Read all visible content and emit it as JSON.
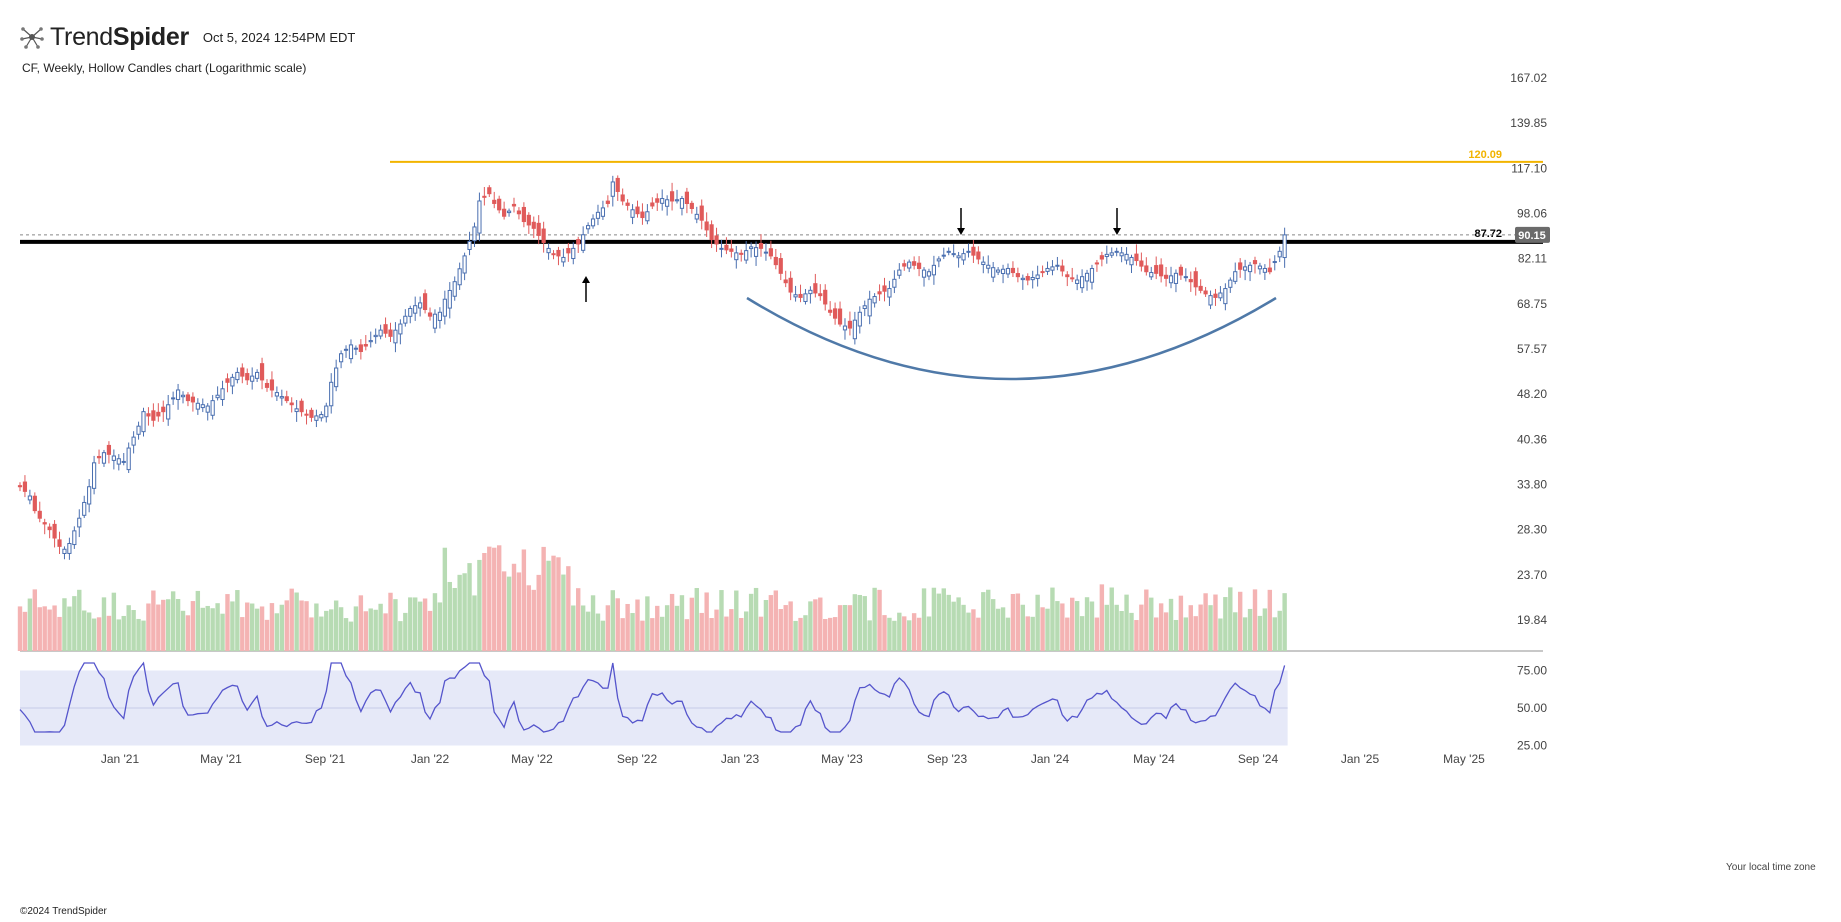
{
  "header": {
    "brand_light": "Trend",
    "brand_bold": "Spider",
    "timestamp": "Oct 5, 2024 12:54PM EDT"
  },
  "subtitle": "CF, Weekly, Hollow Candles chart (Logarithmic scale)",
  "copyright": "©2024 TrendSpider",
  "tz_note": "Your local time zone",
  "colors": {
    "up": "#4a6fb0",
    "down": "#e05a5a",
    "vol_up": "#b7dbb3",
    "vol_down": "#f4b3b3",
    "rsi_line": "#5555cc",
    "rsi_band": "#e6e9f8",
    "resistance": "#000000",
    "upper_line": "#f2b400",
    "arc": "#4f79a8",
    "last_price_bg": "#6b6b6b"
  },
  "chart_data": {
    "type": "candlestick",
    "title": "CF, Weekly, Hollow Candles chart (Logarithmic scale)",
    "scale": "log",
    "price_ticks": [
      "167.02",
      "139.85",
      "117.10",
      "98.06",
      "82.11",
      "68.75",
      "57.57",
      "48.20",
      "40.36",
      "33.80",
      "28.30",
      "23.70",
      "19.84"
    ],
    "rsi_ticks": [
      "75.00",
      "50.00",
      "25.00"
    ],
    "x_ticks": [
      "Jan '21",
      "May '21",
      "Sep '21",
      "Jan '22",
      "May '22",
      "Sep '22",
      "Jan '23",
      "May '23",
      "Sep '23",
      "Jan '24",
      "May '24",
      "Sep '24",
      "Jan '25",
      "May '25"
    ],
    "level_lines": [
      {
        "label": "120.09",
        "value": 120.09,
        "color": "#f2b400"
      },
      {
        "label": "87.72",
        "value": 87.72,
        "color": "#000000"
      }
    ],
    "last_price": "90.15",
    "close_path": [
      [
        0,
        33.5
      ],
      [
        2,
        32.3
      ],
      [
        3,
        30.5
      ],
      [
        4,
        29.6
      ],
      [
        6,
        28.3
      ],
      [
        8,
        26.5
      ],
      [
        9,
        26.2
      ],
      [
        10,
        26.8
      ],
      [
        12,
        29.6
      ],
      [
        14,
        33.5
      ],
      [
        15,
        36.8
      ],
      [
        17,
        38.3
      ],
      [
        19,
        37.8
      ],
      [
        21,
        37.0
      ],
      [
        22,
        39.0
      ],
      [
        24,
        42.5
      ],
      [
        25,
        45.0
      ],
      [
        27,
        43.5
      ],
      [
        29,
        45.0
      ],
      [
        31,
        47.5
      ],
      [
        32,
        49.0
      ],
      [
        34,
        47.0
      ],
      [
        36,
        46.5
      ],
      [
        38,
        46.0
      ],
      [
        40,
        48.0
      ],
      [
        42,
        50.5
      ],
      [
        44,
        52.5
      ],
      [
        46,
        51.0
      ],
      [
        48,
        52.5
      ],
      [
        50,
        49.5
      ],
      [
        52,
        48.5
      ],
      [
        54,
        47.0
      ],
      [
        56,
        45.5
      ],
      [
        58,
        44.5
      ],
      [
        59,
        44.0
      ],
      [
        61,
        44.5
      ],
      [
        62,
        46.0
      ],
      [
        63,
        50.5
      ],
      [
        65,
        56.5
      ],
      [
        67,
        58.5
      ],
      [
        69,
        57.0
      ],
      [
        71,
        59.5
      ],
      [
        73,
        62.0
      ],
      [
        75,
        60.5
      ],
      [
        77,
        63.5
      ],
      [
        79,
        67.5
      ],
      [
        81,
        69.0
      ],
      [
        83,
        65.5
      ],
      [
        85,
        66.5
      ],
      [
        86,
        70.0
      ],
      [
        88,
        75.0
      ],
      [
        90,
        83.0
      ],
      [
        92,
        93.0
      ],
      [
        93,
        103.0
      ],
      [
        95,
        106.0
      ],
      [
        96,
        102.0
      ],
      [
        98,
        97.0
      ],
      [
        100,
        101.0
      ],
      [
        102,
        95.0
      ],
      [
        104,
        92.5
      ],
      [
        106,
        87.5
      ],
      [
        108,
        83.5
      ],
      [
        110,
        82.5
      ],
      [
        111,
        84.0
      ],
      [
        113,
        87.0
      ],
      [
        115,
        93.5
      ],
      [
        117,
        98.5
      ],
      [
        119,
        102.0
      ],
      [
        120,
        111.0
      ],
      [
        122,
        103.0
      ],
      [
        124,
        99.5
      ],
      [
        126,
        96.5
      ],
      [
        128,
        101.0
      ],
      [
        130,
        104.0
      ],
      [
        132,
        103.0
      ],
      [
        134,
        104.0
      ],
      [
        136,
        100.0
      ],
      [
        138,
        95.5
      ],
      [
        140,
        88.5
      ],
      [
        142,
        85.5
      ],
      [
        144,
        84.5
      ],
      [
        146,
        83.5
      ],
      [
        148,
        86.0
      ],
      [
        150,
        85.5
      ],
      [
        152,
        83.0
      ],
      [
        154,
        77.5
      ],
      [
        156,
        72.0
      ],
      [
        158,
        70.5
      ],
      [
        160,
        72.5
      ],
      [
        162,
        71.0
      ],
      [
        164,
        66.5
      ],
      [
        166,
        63.5
      ],
      [
        168,
        62.5
      ],
      [
        170,
        66.5
      ],
      [
        172,
        70.0
      ],
      [
        174,
        71.5
      ],
      [
        176,
        73.0
      ],
      [
        178,
        78.5
      ],
      [
        180,
        81.0
      ],
      [
        182,
        79.0
      ],
      [
        184,
        78.0
      ],
      [
        186,
        82.0
      ],
      [
        188,
        84.5
      ],
      [
        190,
        83.0
      ],
      [
        192,
        84.5
      ],
      [
        194,
        82.0
      ],
      [
        196,
        80.0
      ],
      [
        198,
        78.5
      ],
      [
        200,
        79.0
      ],
      [
        202,
        76.5
      ],
      [
        204,
        75.5
      ],
      [
        206,
        77.0
      ],
      [
        208,
        79.0
      ],
      [
        210,
        80.0
      ],
      [
        212,
        76.5
      ],
      [
        214,
        75.5
      ],
      [
        216,
        77.5
      ],
      [
        218,
        80.5
      ],
      [
        220,
        83.5
      ],
      [
        222,
        84.5
      ],
      [
        224,
        83.5
      ],
      [
        226,
        81.5
      ],
      [
        228,
        78.0
      ],
      [
        230,
        77.5
      ],
      [
        232,
        76.0
      ],
      [
        234,
        77.5
      ],
      [
        236,
        76.5
      ],
      [
        238,
        73.5
      ],
      [
        240,
        71.5
      ],
      [
        242,
        70.5
      ],
      [
        244,
        73.0
      ],
      [
        246,
        78.0
      ],
      [
        248,
        79.5
      ],
      [
        250,
        80.5
      ],
      [
        252,
        79.0
      ],
      [
        253,
        78.0
      ],
      [
        255,
        84.5
      ],
      [
        256,
        90.15
      ]
    ],
    "volume_scale": "0-1",
    "rsi_range": [
      25,
      75
    ]
  }
}
